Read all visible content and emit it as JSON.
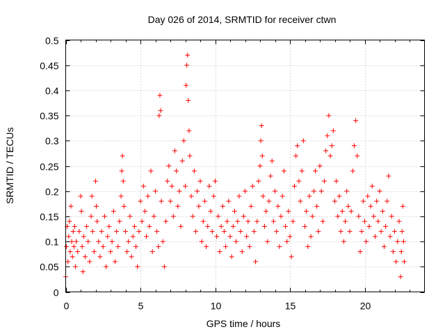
{
  "chart_data": {
    "type": "scatter",
    "title": "Day 026 of 2014, SRMTID for receiver ctwn",
    "xlabel": "GPS time / hours",
    "ylabel": "SRMTID / TECUs",
    "xlim": [
      0,
      24
    ],
    "ylim": [
      0,
      0.5
    ],
    "xticks": [
      0,
      5,
      10,
      15,
      20
    ],
    "xtick_labels": [
      "0",
      "5",
      "10",
      "15",
      "20"
    ],
    "yticks": [
      0,
      0.05,
      0.1,
      0.15,
      0.2,
      0.25,
      0.3,
      0.35,
      0.4,
      0.45,
      0.5
    ],
    "ytick_labels": [
      "0",
      "0.05",
      "0.1",
      "0.15",
      "0.2",
      "0.25",
      "0.3",
      "0.35",
      "0.4",
      "0.45",
      "0.5"
    ],
    "grid": true,
    "marker": "+",
    "color": "#ff0000",
    "series": [
      {
        "name": "SRMTID",
        "points": [
          [
            0.0,
            0.03
          ],
          [
            0.05,
            0.09
          ],
          [
            0.1,
            0.13
          ],
          [
            0.15,
            0.06
          ],
          [
            0.2,
            0.11
          ],
          [
            0.25,
            0.14
          ],
          [
            0.3,
            0.08
          ],
          [
            0.35,
            0.17
          ],
          [
            0.4,
            0.1
          ],
          [
            0.45,
            0.07
          ],
          [
            0.5,
            0.12
          ],
          [
            0.55,
            0.09
          ],
          [
            0.6,
            0.13
          ],
          [
            0.65,
            0.05
          ],
          [
            0.7,
            0.1
          ],
          [
            0.8,
            0.08
          ],
          [
            0.9,
            0.12
          ],
          [
            1.0,
            0.19
          ],
          [
            1.05,
            0.16
          ],
          [
            1.1,
            0.09
          ],
          [
            1.15,
            0.04
          ],
          [
            1.2,
            0.11
          ],
          [
            1.3,
            0.07
          ],
          [
            1.4,
            0.13
          ],
          [
            1.5,
            0.1
          ],
          [
            1.6,
            0.06
          ],
          [
            1.7,
            0.15
          ],
          [
            1.75,
            0.19
          ],
          [
            1.8,
            0.12
          ],
          [
            1.9,
            0.08
          ],
          [
            2.0,
            0.22
          ],
          [
            2.05,
            0.17
          ],
          [
            2.1,
            0.14
          ],
          [
            2.2,
            0.1
          ],
          [
            2.3,
            0.07
          ],
          [
            2.4,
            0.12
          ],
          [
            2.5,
            0.09
          ],
          [
            2.6,
            0.15
          ],
          [
            2.7,
            0.05
          ],
          [
            2.8,
            0.11
          ],
          [
            2.9,
            0.13
          ],
          [
            3.0,
            0.08
          ],
          [
            3.1,
            0.1
          ],
          [
            3.2,
            0.16
          ],
          [
            3.3,
            0.06
          ],
          [
            3.4,
            0.12
          ],
          [
            3.5,
            0.09
          ],
          [
            3.6,
            0.14
          ],
          [
            3.7,
            0.19
          ],
          [
            3.75,
            0.24
          ],
          [
            3.8,
            0.27
          ],
          [
            3.85,
            0.22
          ],
          [
            3.9,
            0.17
          ],
          [
            4.0,
            0.12
          ],
          [
            4.1,
            0.08
          ],
          [
            4.2,
            0.1
          ],
          [
            4.3,
            0.15
          ],
          [
            4.4,
            0.07
          ],
          [
            4.5,
            0.11
          ],
          [
            4.6,
            0.13
          ],
          [
            4.7,
            0.09
          ],
          [
            4.8,
            0.05
          ],
          [
            4.9,
            0.12
          ],
          [
            5.0,
            0.18
          ],
          [
            5.1,
            0.14
          ],
          [
            5.2,
            0.21
          ],
          [
            5.3,
            0.16
          ],
          [
            5.4,
            0.11
          ],
          [
            5.5,
            0.19
          ],
          [
            5.6,
            0.13
          ],
          [
            5.7,
            0.24
          ],
          [
            5.8,
            0.08
          ],
          [
            5.9,
            0.15
          ],
          [
            6.0,
            0.2
          ],
          [
            6.1,
            0.12
          ],
          [
            6.2,
            0.09
          ],
          [
            6.25,
            0.35
          ],
          [
            6.3,
            0.39
          ],
          [
            6.35,
            0.36
          ],
          [
            6.4,
            0.18
          ],
          [
            6.5,
            0.1
          ],
          [
            6.6,
            0.05
          ],
          [
            6.7,
            0.14
          ],
          [
            6.8,
            0.22
          ],
          [
            6.9,
            0.25
          ],
          [
            7.0,
            0.18
          ],
          [
            7.1,
            0.21
          ],
          [
            7.2,
            0.15
          ],
          [
            7.3,
            0.28
          ],
          [
            7.4,
            0.24
          ],
          [
            7.5,
            0.17
          ],
          [
            7.6,
            0.2
          ],
          [
            7.7,
            0.13
          ],
          [
            7.8,
            0.26
          ],
          [
            7.9,
            0.3
          ],
          [
            8.0,
            0.21
          ],
          [
            8.05,
            0.41
          ],
          [
            8.1,
            0.45
          ],
          [
            8.15,
            0.47
          ],
          [
            8.2,
            0.38
          ],
          [
            8.25,
            0.32
          ],
          [
            8.3,
            0.27
          ],
          [
            8.4,
            0.19
          ],
          [
            8.5,
            0.15
          ],
          [
            8.6,
            0.24
          ],
          [
            8.7,
            0.12
          ],
          [
            8.8,
            0.2
          ],
          [
            8.9,
            0.17
          ],
          [
            9.0,
            0.22
          ],
          [
            9.1,
            0.1
          ],
          [
            9.2,
            0.14
          ],
          [
            9.3,
            0.18
          ],
          [
            9.4,
            0.09
          ],
          [
            9.5,
            0.13
          ],
          [
            9.6,
            0.21
          ],
          [
            9.7,
            0.16
          ],
          [
            9.8,
            0.12
          ],
          [
            9.9,
            0.19
          ],
          [
            10.0,
            0.22
          ],
          [
            10.1,
            0.11
          ],
          [
            10.2,
            0.15
          ],
          [
            10.3,
            0.08
          ],
          [
            10.4,
            0.13
          ],
          [
            10.5,
            0.17
          ],
          [
            10.6,
            0.12
          ],
          [
            10.7,
            0.09
          ],
          [
            10.8,
            0.14
          ],
          [
            10.9,
            0.18
          ],
          [
            11.0,
            0.11
          ],
          [
            11.1,
            0.07
          ],
          [
            11.2,
            0.13
          ],
          [
            11.3,
            0.16
          ],
          [
            11.4,
            0.1
          ],
          [
            11.5,
            0.14
          ],
          [
            11.6,
            0.19
          ],
          [
            11.7,
            0.12
          ],
          [
            11.8,
            0.08
          ],
          [
            11.9,
            0.15
          ],
          [
            12.0,
            0.2
          ],
          [
            12.1,
            0.11
          ],
          [
            12.2,
            0.14
          ],
          [
            12.3,
            0.09
          ],
          [
            12.4,
            0.17
          ],
          [
            12.5,
            0.21
          ],
          [
            12.6,
            0.12
          ],
          [
            12.7,
            0.06
          ],
          [
            12.8,
            0.14
          ],
          [
            12.9,
            0.22
          ],
          [
            13.0,
            0.25
          ],
          [
            13.05,
            0.3
          ],
          [
            13.1,
            0.33
          ],
          [
            13.15,
            0.27
          ],
          [
            13.2,
            0.19
          ],
          [
            13.3,
            0.13
          ],
          [
            13.4,
            0.16
          ],
          [
            13.5,
            0.1
          ],
          [
            13.6,
            0.18
          ],
          [
            13.7,
            0.23
          ],
          [
            13.8,
            0.26
          ],
          [
            13.9,
            0.14
          ],
          [
            14.0,
            0.2
          ],
          [
            14.1,
            0.12
          ],
          [
            14.2,
            0.17
          ],
          [
            14.3,
            0.09
          ],
          [
            14.4,
            0.15
          ],
          [
            14.5,
            0.19
          ],
          [
            14.6,
            0.24
          ],
          [
            14.7,
            0.13
          ],
          [
            14.8,
            0.1
          ],
          [
            14.9,
            0.16
          ],
          [
            15.0,
            0.11
          ],
          [
            15.1,
            0.07
          ],
          [
            15.2,
            0.14
          ],
          [
            15.3,
            0.21
          ],
          [
            15.4,
            0.27
          ],
          [
            15.5,
            0.29
          ],
          [
            15.6,
            0.22
          ],
          [
            15.7,
            0.18
          ],
          [
            15.8,
            0.24
          ],
          [
            15.9,
            0.3
          ],
          [
            16.0,
            0.13
          ],
          [
            16.1,
            0.16
          ],
          [
            16.2,
            0.09
          ],
          [
            16.3,
            0.19
          ],
          [
            16.4,
            0.11
          ],
          [
            16.5,
            0.15
          ],
          [
            16.6,
            0.2
          ],
          [
            16.7,
            0.24
          ],
          [
            16.8,
            0.17
          ],
          [
            16.9,
            0.12
          ],
          [
            17.0,
            0.25
          ],
          [
            17.1,
            0.2
          ],
          [
            17.2,
            0.14
          ],
          [
            17.3,
            0.22
          ],
          [
            17.4,
            0.28
          ],
          [
            17.5,
            0.31
          ],
          [
            17.6,
            0.35
          ],
          [
            17.7,
            0.27
          ],
          [
            17.8,
            0.29
          ],
          [
            17.9,
            0.32
          ],
          [
            18.0,
            0.18
          ],
          [
            18.1,
            0.22
          ],
          [
            18.2,
            0.15
          ],
          [
            18.3,
            0.19
          ],
          [
            18.4,
            0.12
          ],
          [
            18.5,
            0.16
          ],
          [
            18.6,
            0.1
          ],
          [
            18.7,
            0.14
          ],
          [
            18.8,
            0.2
          ],
          [
            18.9,
            0.17
          ],
          [
            19.0,
            0.12
          ],
          [
            19.1,
            0.16
          ],
          [
            19.2,
            0.24
          ],
          [
            19.3,
            0.29
          ],
          [
            19.4,
            0.34
          ],
          [
            19.5,
            0.27
          ],
          [
            19.6,
            0.15
          ],
          [
            19.7,
            0.08
          ],
          [
            19.8,
            0.12
          ],
          [
            19.9,
            0.18
          ],
          [
            20.0,
            0.14
          ],
          [
            20.1,
            0.1
          ],
          [
            20.2,
            0.19
          ],
          [
            20.3,
            0.13
          ],
          [
            20.4,
            0.17
          ],
          [
            20.5,
            0.21
          ],
          [
            20.6,
            0.15
          ],
          [
            20.7,
            0.11
          ],
          [
            20.8,
            0.18
          ],
          [
            20.9,
            0.14
          ],
          [
            21.0,
            0.2
          ],
          [
            21.1,
            0.12
          ],
          [
            21.2,
            0.16
          ],
          [
            21.3,
            0.09
          ],
          [
            21.4,
            0.13
          ],
          [
            21.5,
            0.18
          ],
          [
            21.6,
            0.23
          ],
          [
            21.7,
            0.11
          ],
          [
            21.8,
            0.15
          ],
          [
            21.9,
            0.08
          ],
          [
            22.0,
            0.12
          ],
          [
            22.1,
            0.06
          ],
          [
            22.2,
            0.1
          ],
          [
            22.3,
            0.14
          ],
          [
            22.4,
            0.03
          ],
          [
            22.45,
            0.08
          ],
          [
            22.5,
            0.12
          ],
          [
            22.55,
            0.17
          ],
          [
            22.6,
            0.1
          ],
          [
            22.65,
            0.06
          ]
        ]
      }
    ]
  }
}
